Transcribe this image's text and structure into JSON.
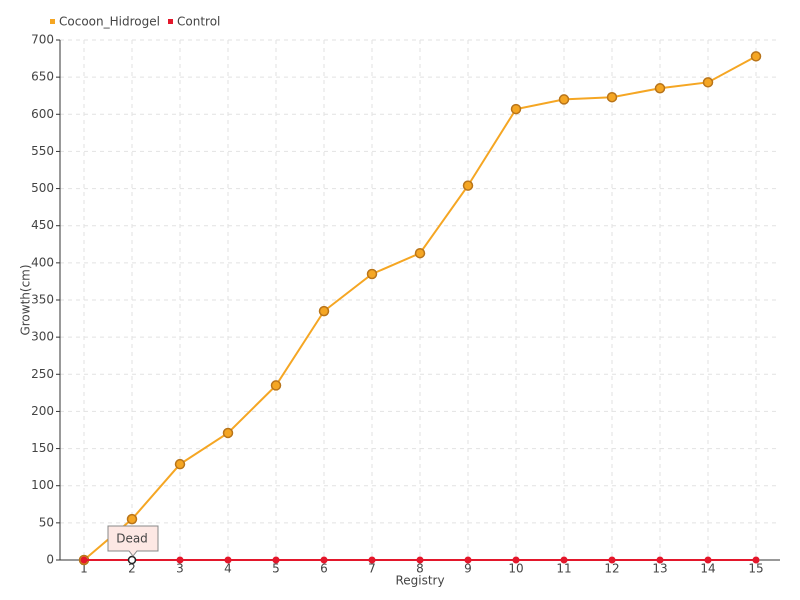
{
  "chart_data": {
    "type": "line",
    "x_label": "Registry",
    "y_label": "Growth(cm)",
    "categories": [
      "1",
      "2",
      "3",
      "4",
      "5",
      "6",
      "7",
      "8",
      "9",
      "10",
      "11",
      "12",
      "13",
      "14",
      "15"
    ],
    "series": [
      {
        "name": "Cocoon_Hidrogel",
        "color": "#f5a623",
        "values": [
          0,
          55,
          129,
          171,
          235,
          335,
          385,
          413,
          504,
          607,
          620,
          623,
          635,
          643,
          678
        ]
      },
      {
        "name": "Control",
        "color": "#e3172b",
        "values": [
          0,
          0,
          0,
          0,
          0,
          0,
          0,
          0,
          0,
          0,
          0,
          0,
          0,
          0,
          0
        ]
      }
    ],
    "ylim": [
      0,
      700
    ],
    "yticks": [
      0,
      50,
      100,
      150,
      200,
      250,
      300,
      350,
      400,
      450,
      500,
      550,
      600,
      650,
      700
    ],
    "grid": true,
    "legend": "top-left",
    "annotation": "Dead"
  }
}
